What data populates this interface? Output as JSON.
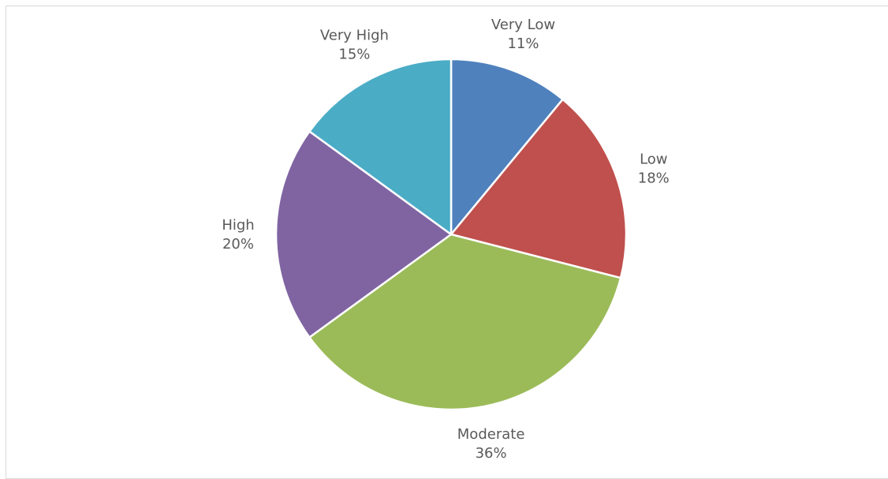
{
  "chart_data": {
    "type": "pie",
    "title": "",
    "start_angle_deg": 0,
    "direction": "clockwise",
    "slices": [
      {
        "label": "Very Low",
        "value": 11,
        "value_label": "11%",
        "color": "#4f81bd"
      },
      {
        "label": "Low",
        "value": 18,
        "value_label": "18%",
        "color": "#c0504d"
      },
      {
        "label": "Moderate",
        "value": 36,
        "value_label": "36%",
        "color": "#9bbb59"
      },
      {
        "label": "High",
        "value": 20,
        "value_label": "20%",
        "color": "#8064a2"
      },
      {
        "label": "Very High",
        "value": 15,
        "value_label": "15%",
        "color": "#4bacc6"
      }
    ],
    "legend": "none",
    "data_labels": "outside, category name and percentage"
  }
}
